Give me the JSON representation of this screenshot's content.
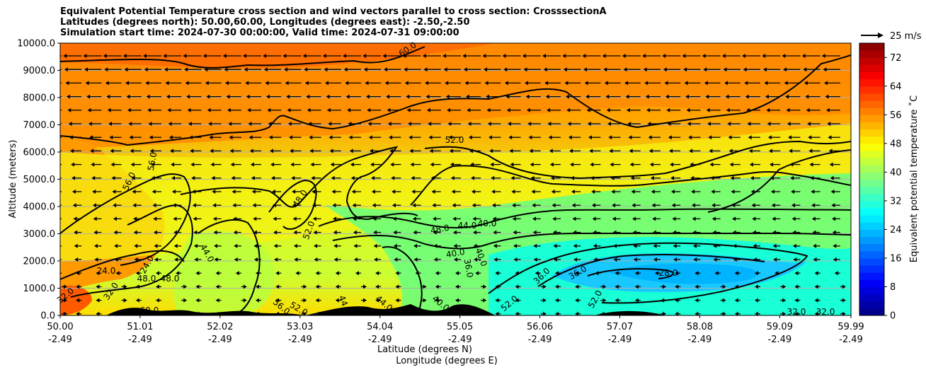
{
  "title": {
    "line1": "Equivalent Potential Temperature cross section and wind vectors parallel to cross section: CrosssectionA",
    "line2": "Latitudes (degrees north): 50.00,60.00, Longitudes (degrees east): -2.50,-2.50",
    "line3": "Simulation start time: 2024-07-30 00:00:00, Valid time: 2024-07-31 09:00:00"
  },
  "wind_key": {
    "label": "25 m/s"
  },
  "chart_data": {
    "type": "heatmap",
    "subtype": "cross-section contour with wind vectors",
    "ylabel": "Altitude (meters)",
    "xlabel_line1": "Latitude (degrees N)",
    "xlabel_line2": "Longitude (degrees E)",
    "ylim": [
      0,
      10000
    ],
    "y_ticks": [
      "0.0",
      "1000.0",
      "2000.0",
      "3000.0",
      "4000.0",
      "5000.0",
      "6000.0",
      "7000.0",
      "8000.0",
      "9000.0",
      "10000.0"
    ],
    "x_ticks_lat": [
      "50.00",
      "51.01",
      "52.02",
      "53.03",
      "54.04",
      "55.05",
      "56.06",
      "57.07",
      "58.08",
      "59.09",
      "59.99"
    ],
    "x_ticks_lon": [
      "-2.49",
      "-2.49",
      "-2.49",
      "-2.49",
      "-2.49",
      "-2.49",
      "-2.49",
      "-2.49",
      "-2.49",
      "-2.49",
      "-2.49"
    ],
    "grid": "horizontal",
    "colorbar": {
      "label": "Equivalent potential temperature ˚C",
      "range": [
        0,
        76
      ],
      "ticks": [
        "0",
        "8",
        "16",
        "24",
        "32",
        "40",
        "48",
        "56",
        "64",
        "72"
      ],
      "colormap": "jet"
    },
    "contour_labels": [
      "60.0",
      "52.0",
      "56.0",
      "56.0",
      "48.0",
      "52.0",
      "44.0",
      "48.0",
      "44.0",
      "40.0",
      "40.0",
      "40.0",
      "36.0",
      "36.0",
      "36.0",
      "28.0",
      "24.0",
      "24.0",
      "48.0",
      "48.0",
      "52.0",
      "52.0",
      "32.0",
      "32.0",
      "32.0",
      "32.0",
      "60.0",
      "56.0",
      "52.0",
      "44.0",
      "44.0",
      "40.0"
    ],
    "wind_direction": "predominantly northward-to-southward (leftward) aloft, light near surface"
  }
}
